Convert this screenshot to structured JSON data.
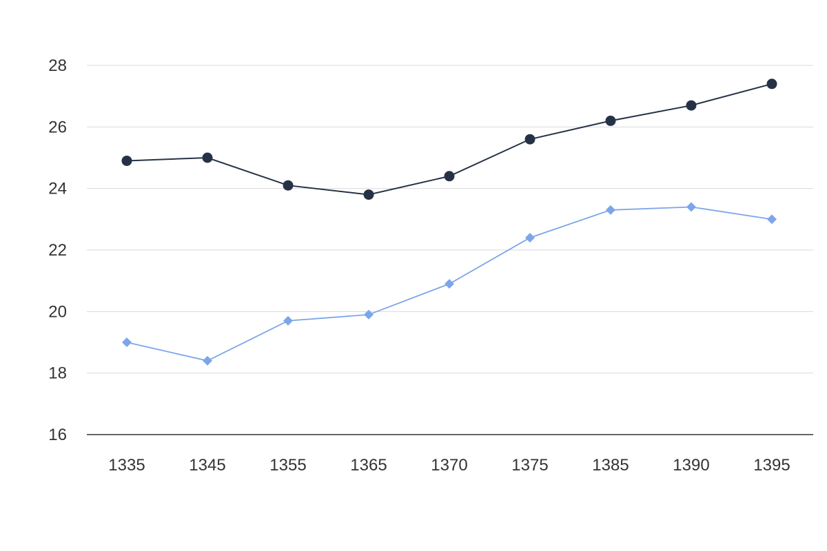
{
  "chart_data": {
    "type": "line",
    "title": "",
    "xlabel": "",
    "ylabel": "",
    "categories": [
      "1335",
      "1345",
      "1355",
      "1365",
      "1370",
      "1375",
      "1385",
      "1390",
      "1395"
    ],
    "ylim": [
      16,
      28
    ],
    "yticks": [
      16,
      18,
      20,
      22,
      24,
      26,
      28
    ],
    "grid": true,
    "legend": "none",
    "series": [
      {
        "marker": "circle",
        "color": "#253246",
        "values": [
          24.9,
          25.0,
          24.1,
          23.8,
          24.4,
          25.6,
          26.2,
          26.7,
          27.4
        ]
      },
      {
        "marker": "diamond",
        "color": "#7ca5ea",
        "values": [
          19.0,
          18.4,
          19.7,
          19.9,
          20.9,
          22.4,
          23.3,
          23.4,
          23.0
        ]
      }
    ]
  }
}
